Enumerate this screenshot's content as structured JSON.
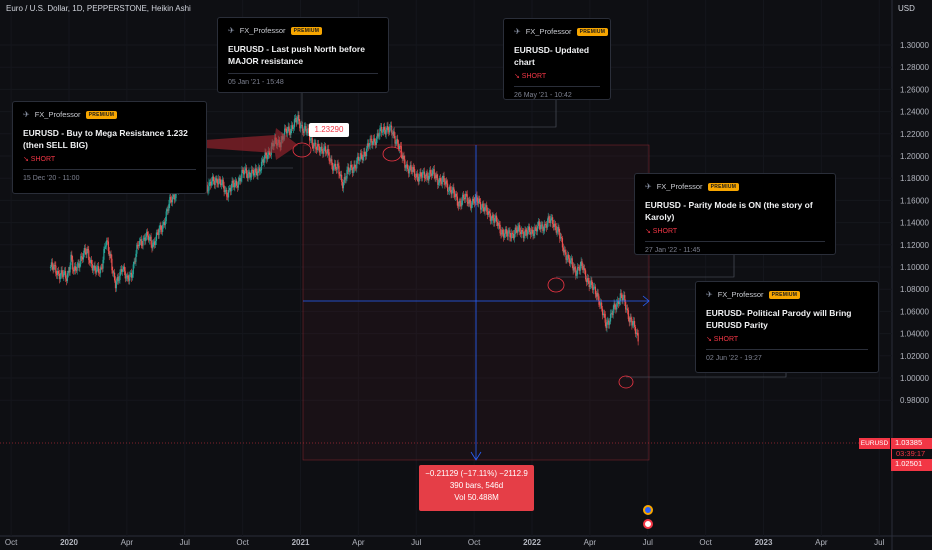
{
  "header": {
    "symbol_line": "Euro / U.S. Dollar, 1D, PEPPERSTONE, Heikin Ashi",
    "currency": "USD"
  },
  "chart_data": {
    "type": "candlestick",
    "title": "Euro / U.S. Dollar, 1D, PEPPERSTONE, Heikin Ashi",
    "y_ticks": [
      "1.30000",
      "1.28000",
      "1.26000",
      "1.24000",
      "1.22000",
      "1.20000",
      "1.18000",
      "1.16000",
      "1.14000",
      "1.12000",
      "1.10000",
      "1.08000",
      "1.06000",
      "1.04000",
      "1.02000",
      "1.00000",
      "0.98000"
    ],
    "x_ticks": [
      "Oct",
      "2020",
      "Apr",
      "Jul",
      "Oct",
      "2021",
      "Apr",
      "Jul",
      "Oct",
      "2022",
      "Apr",
      "Jul",
      "Oct",
      "2023",
      "Apr",
      "Jul"
    ],
    "ylim": [
      0.975,
      1.315
    ],
    "bull_color": "#26a69a",
    "bear_color": "#ef5350",
    "price_path": [
      [
        -0.08,
        1.1
      ],
      [
        -0.01,
        1.09
      ],
      [
        0.0,
        1.1
      ],
      [
        0.01,
        1.11
      ],
      [
        0.02,
        1.093
      ],
      [
        0.05,
        1.108
      ],
      [
        0.08,
        1.114
      ],
      [
        0.11,
        1.095
      ],
      [
        0.14,
        1.1
      ],
      [
        0.16,
        1.122
      ],
      [
        0.18,
        1.11
      ],
      [
        0.2,
        1.082
      ],
      [
        0.21,
        1.086
      ],
      [
        0.23,
        1.103
      ],
      [
        0.25,
        1.086
      ],
      [
        0.27,
        1.095
      ],
      [
        0.3,
        1.12
      ],
      [
        0.33,
        1.128
      ],
      [
        0.36,
        1.121
      ],
      [
        0.4,
        1.135
      ],
      [
        0.44,
        1.16
      ],
      [
        0.48,
        1.175
      ],
      [
        0.52,
        1.19
      ],
      [
        0.56,
        1.182
      ],
      [
        0.6,
        1.172
      ],
      [
        0.64,
        1.18
      ],
      [
        0.68,
        1.167
      ],
      [
        0.72,
        1.175
      ],
      [
        0.76,
        1.186
      ],
      [
        0.8,
        1.183
      ],
      [
        0.84,
        1.195
      ],
      [
        0.88,
        1.21
      ],
      [
        0.91,
        1.213
      ],
      [
        0.94,
        1.222
      ],
      [
        0.97,
        1.228
      ],
      [
        0.99,
        1.2329
      ],
      [
        1.01,
        1.225
      ],
      [
        1.04,
        1.218
      ],
      [
        1.07,
        1.205
      ],
      [
        1.1,
        1.208
      ],
      [
        1.13,
        1.195
      ],
      [
        1.16,
        1.188
      ],
      [
        1.18,
        1.176
      ],
      [
        1.2,
        1.184
      ],
      [
        1.23,
        1.191
      ],
      [
        1.26,
        1.198
      ],
      [
        1.29,
        1.208
      ],
      [
        1.32,
        1.215
      ],
      [
        1.35,
        1.222
      ],
      [
        1.37,
        1.226
      ],
      [
        1.39,
        1.222
      ],
      [
        1.42,
        1.213
      ],
      [
        1.44,
        1.197
      ],
      [
        1.47,
        1.188
      ],
      [
        1.5,
        1.183
      ],
      [
        1.53,
        1.181
      ],
      [
        1.56,
        1.185
      ],
      [
        1.59,
        1.18
      ],
      [
        1.62,
        1.176
      ],
      [
        1.65,
        1.17
      ],
      [
        1.68,
        1.158
      ],
      [
        1.71,
        1.162
      ],
      [
        1.74,
        1.158
      ],
      [
        1.77,
        1.16
      ],
      [
        1.8,
        1.15
      ],
      [
        1.83,
        1.145
      ],
      [
        1.86,
        1.135
      ],
      [
        1.89,
        1.128
      ],
      [
        1.92,
        1.131
      ],
      [
        1.95,
        1.133
      ],
      [
        1.98,
        1.13
      ],
      [
        2.01,
        1.134
      ],
      [
        2.04,
        1.136
      ],
      [
        2.07,
        1.14
      ],
      [
        2.09,
        1.142
      ],
      [
        2.11,
        1.133
      ],
      [
        2.13,
        1.12
      ],
      [
        2.16,
        1.105
      ],
      [
        2.19,
        1.097
      ],
      [
        2.22,
        1.1
      ],
      [
        2.25,
        1.083
      ],
      [
        2.28,
        1.078
      ],
      [
        2.3,
        1.06
      ],
      [
        2.32,
        1.05
      ],
      [
        2.34,
        1.054
      ],
      [
        2.36,
        1.065
      ],
      [
        2.38,
        1.074
      ],
      [
        2.4,
        1.068
      ],
      [
        2.42,
        1.055
      ],
      [
        2.44,
        1.045
      ],
      [
        2.46,
        1.036
      ]
    ]
  },
  "ideas": [
    {
      "author": "FX_Professor",
      "badge": "PREMIUM",
      "title": "EURUSD - Buy to Mega Resistance 1.232 (then SELL BIG)",
      "signal": "↘ SHORT",
      "date": "15 Dec '20 - 11:00"
    },
    {
      "author": "FX_Professor",
      "badge": "PREMIUM",
      "title": "EURUSD - Last push North before MAJOR resistance",
      "date": "05 Jan '21 - 15:48"
    },
    {
      "author": "FX_Professor",
      "badge": "PREMIUM",
      "title": "EURUSD- Updated chart",
      "signal": "↘ SHORT",
      "date": "26 May '21 - 10:42"
    },
    {
      "author": "FX_Professor",
      "badge": "PREMIUM",
      "title": "EURUSD - Parity Mode is ON (the story of Karoly)",
      "signal": "↘ SHORT",
      "date": "27 Jan '22 - 11:45"
    },
    {
      "author": "FX_Professor",
      "badge": "PREMIUM",
      "title": "EURUSD- Political Parody will Bring EURUSD Parity",
      "signal": "↘ SHORT",
      "date": "02 Jun '22 - 19:27"
    }
  ],
  "price_label": "1.23290",
  "measure": {
    "line1": "−0.21129 (−17.11%) −2112.9",
    "line2": "390 bars, 546d",
    "line3": "Vol 50.488M"
  },
  "last_price": {
    "symbol": "EURUSD",
    "price": "1.03385",
    "countdown": "03:39:17",
    "bid": "1.02501"
  }
}
